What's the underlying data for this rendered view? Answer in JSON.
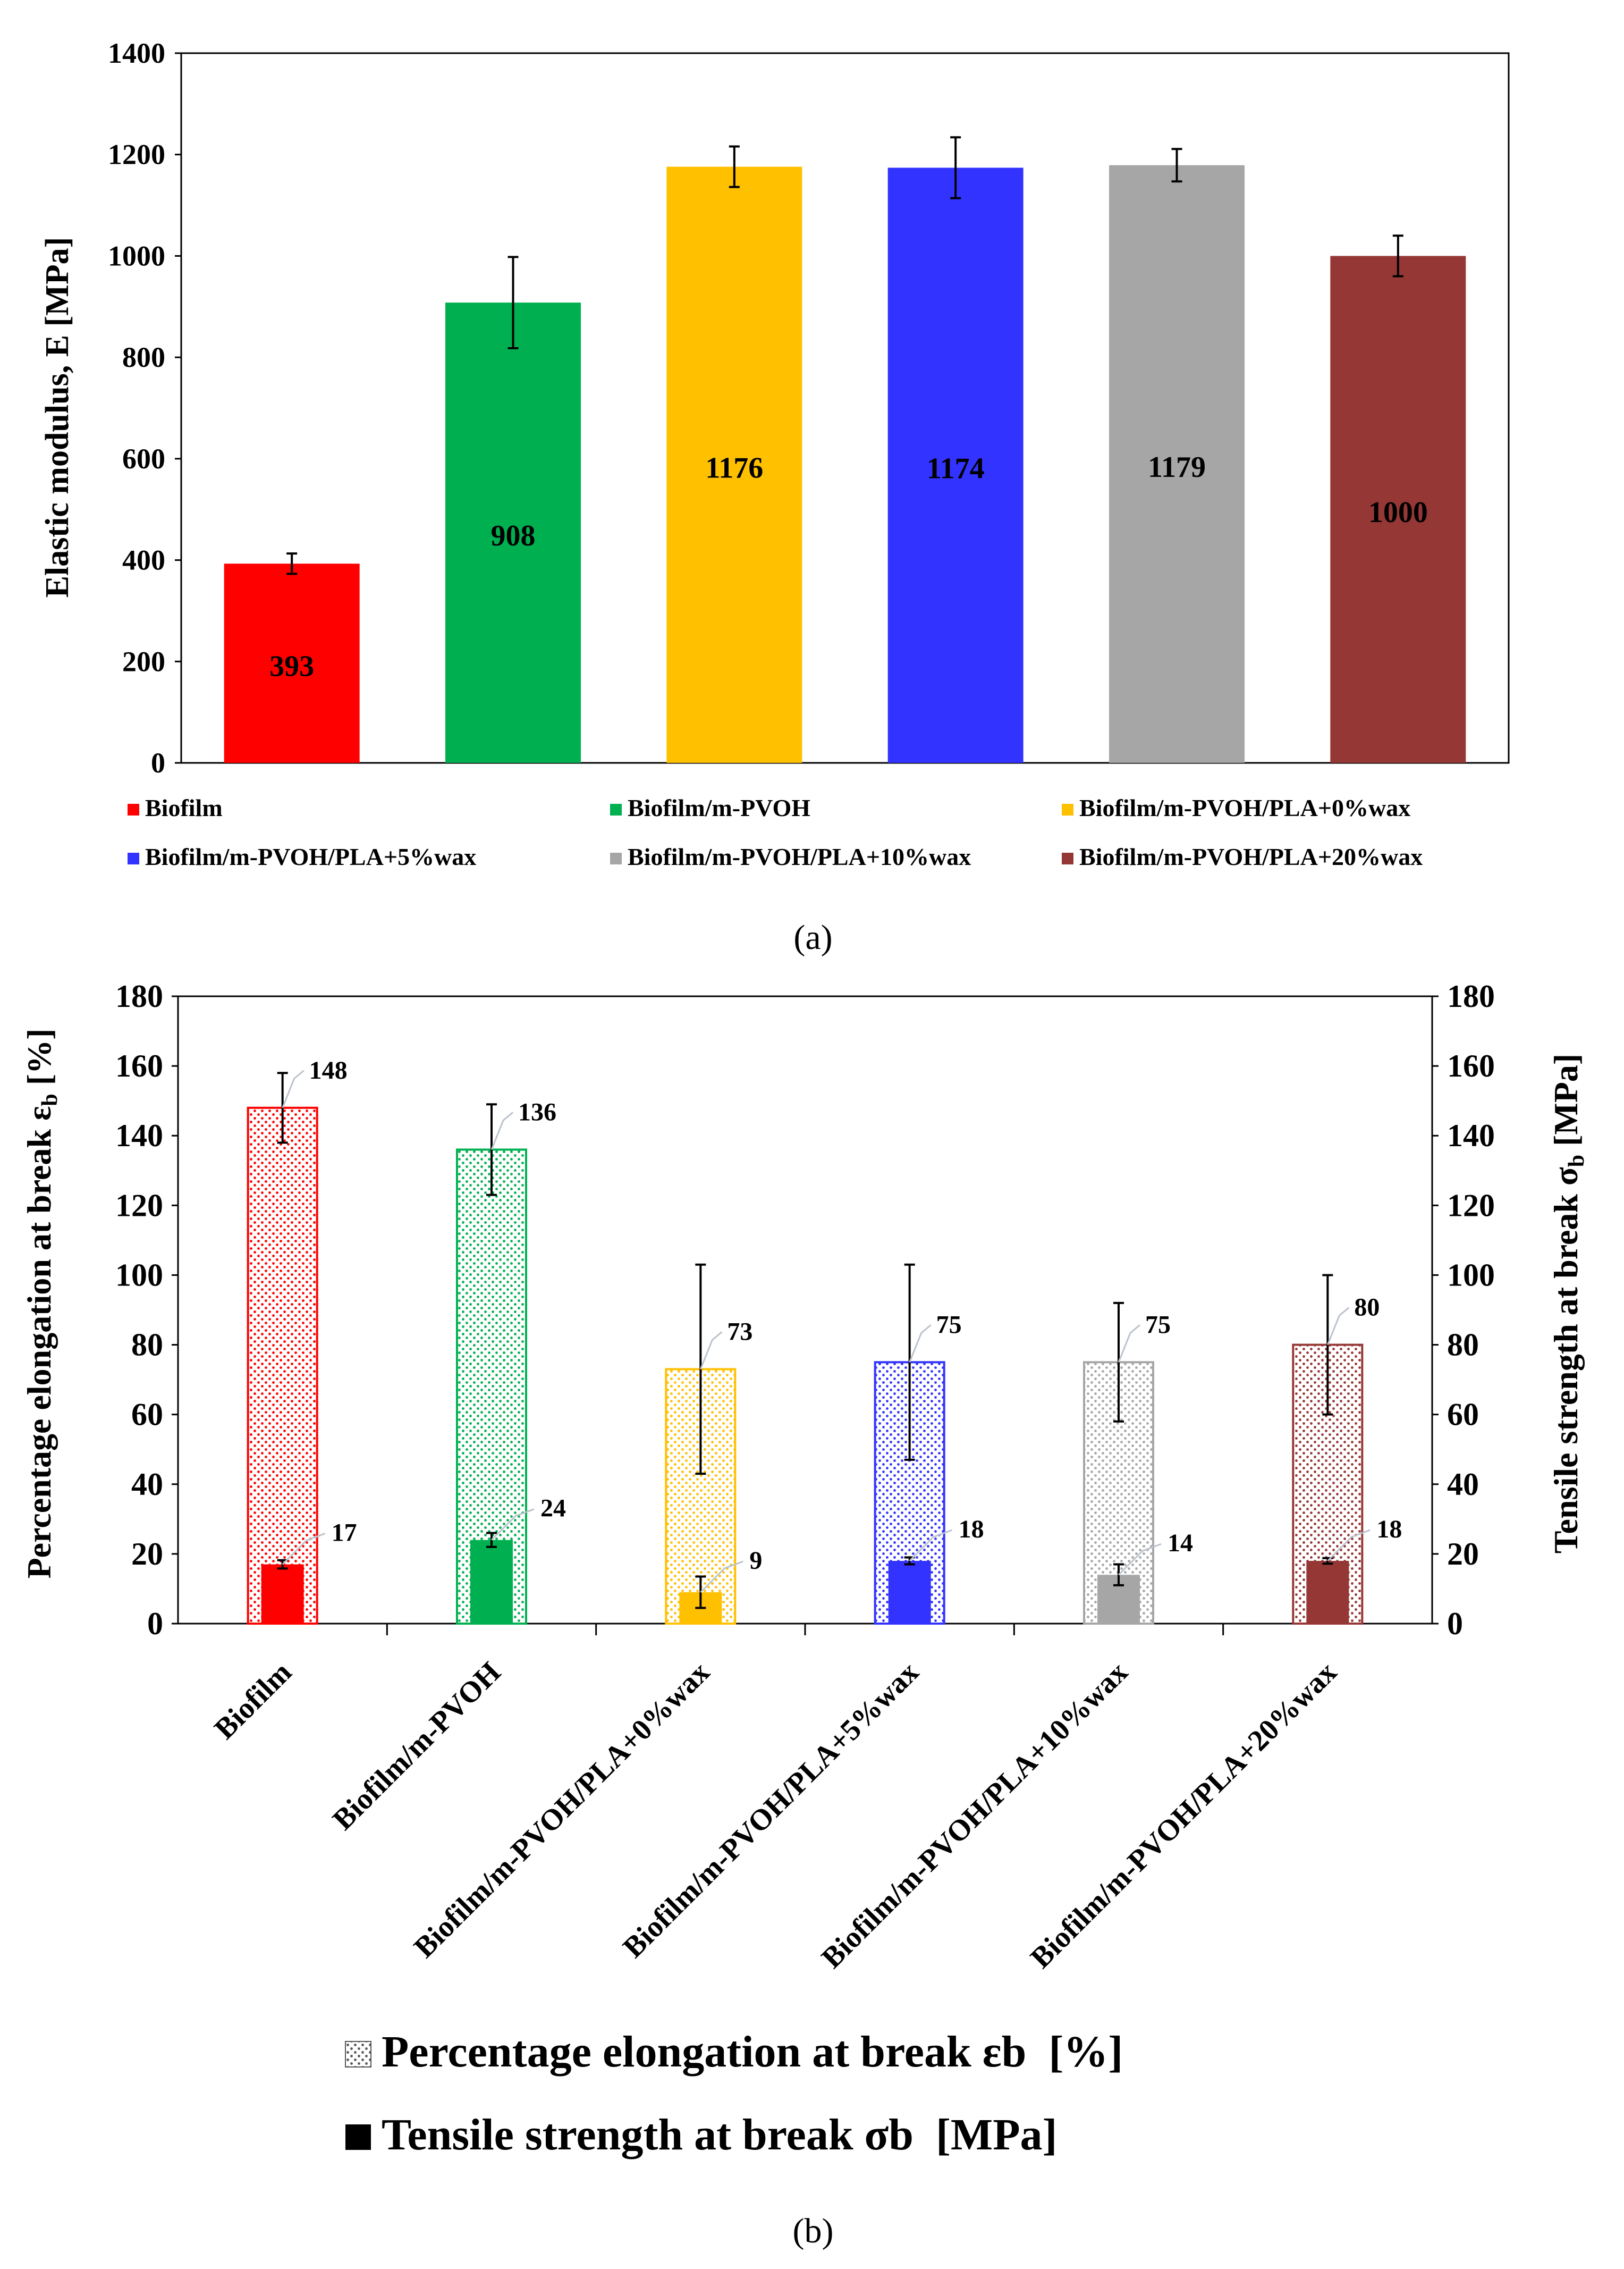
{
  "colors": {
    "Biofilm": "#ff0000",
    "Biofilm/m-PVOH": "#00b050",
    "Biofilm/m-PVOH/PLA+0%wax": "#ffc000",
    "Biofilm/m-PVOH/PLA+5%wax": "#3333ff",
    "Biofilm/m-PVOH/PLA+10%wax": "#a6a6a6",
    "Biofilm/m-PVOH/PLA+20%wax": "#953735"
  },
  "chart_data": [
    {
      "id": "a",
      "type": "bar",
      "panel_label": "(a)",
      "ylabel": "Elastic modulus, E [MPa]",
      "ylim": [
        0,
        1400
      ],
      "yticks": [
        0,
        200,
        400,
        600,
        800,
        1000,
        1200,
        1400
      ],
      "ytick_labels": [
        "0",
        "200",
        "400",
        "600",
        "800",
        "1000",
        "1200",
        "1400"
      ],
      "categories": [
        "Biofilm",
        "Biofilm/m-PVOH",
        "Biofilm/m-PVOH/PLA+0%wax",
        "Biofilm/m-PVOH/PLA+5%wax",
        "Biofilm/m-PVOH/PLA+10%wax",
        "Biofilm/m-PVOH/PLA+20%wax"
      ],
      "values": [
        393,
        908,
        1176,
        1174,
        1179,
        1000
      ],
      "errors": [
        20,
        90,
        40,
        60,
        32,
        40
      ],
      "data_labels": [
        "393",
        "908",
        "1176",
        "1174",
        "1179",
        "1000"
      ],
      "legend": [
        "Biofilm",
        "Biofilm/m-PVOH",
        "Biofilm/m-PVOH/PLA+0%wax",
        "Biofilm/m-PVOH/PLA+5%wax",
        "Biofilm/m-PVOH/PLA+10%wax",
        "Biofilm/m-PVOH/PLA+20%wax"
      ],
      "legend_position": "bottom",
      "grid": false
    },
    {
      "id": "b",
      "type": "bar",
      "panel_label": "(b)",
      "ylabel_left_main": "Percentage elongation at break ε",
      "ylabel_left_sub": "b",
      "ylabel_left_unit": "  [%]",
      "ylabel_right_main": "Tensile strength at break  σ",
      "ylabel_right_sub": "b",
      "ylabel_right_unit": "  [MPa]",
      "ylim_left": [
        0,
        180
      ],
      "ylim_right": [
        0,
        180
      ],
      "yticks": [
        0,
        20,
        40,
        60,
        80,
        100,
        120,
        140,
        160,
        180
      ],
      "ytick_labels": [
        "0",
        "20",
        "40",
        "60",
        "80",
        "100",
        "120",
        "140",
        "160",
        "180"
      ],
      "categories": [
        "Biofilm",
        "Biofilm/m-PVOH",
        "Biofilm/m-PVOH/PLA+0%wax",
        "Biofilm/m-PVOH/PLA+5%wax",
        "Biofilm/m-PVOH/PLA+10%wax",
        "Biofilm/m-PVOH/PLA+20%wax"
      ],
      "series": [
        {
          "name": "Percentage elongation at break εb  [%]",
          "axis": "left",
          "pattern": "dotted",
          "values": [
            148,
            136,
            73,
            75,
            75,
            80
          ],
          "errors": [
            10,
            13,
            30,
            28,
            17,
            20
          ],
          "data_labels": [
            "148",
            "136",
            "73",
            "75",
            "75",
            "80"
          ]
        },
        {
          "name": "Tensile strength at break σb  [MPa]",
          "axis": "right",
          "pattern": "solid",
          "values": [
            17,
            24,
            9,
            18,
            14,
            18
          ],
          "errors": [
            1.2,
            2.0,
            4.5,
            1.0,
            3.0,
            0.8
          ],
          "data_labels": [
            "17",
            "24",
            "9",
            "18",
            "14",
            "18"
          ]
        }
      ],
      "legend_position": "bottom",
      "grid": false
    }
  ]
}
